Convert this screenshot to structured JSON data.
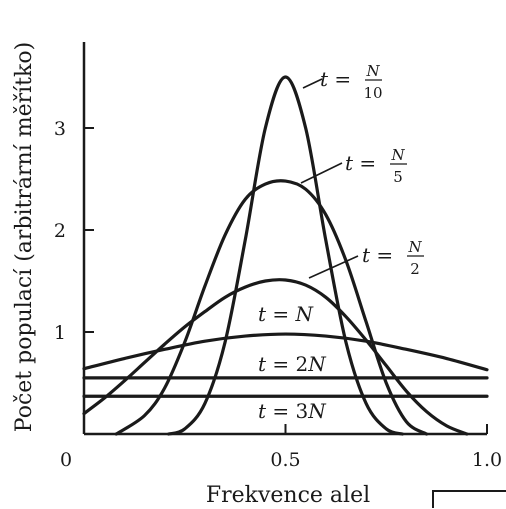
{
  "chart_data": {
    "type": "line",
    "title": "",
    "xlabel": "Frekvence alel",
    "ylabel": "Počet populací (arbitrární měřítko)",
    "xlim": [
      0,
      1.0
    ],
    "ylim": [
      0,
      3.6
    ],
    "x_ticks": [
      {
        "value": 0,
        "label": "0"
      },
      {
        "value": 0.5,
        "label": "0.5"
      },
      {
        "value": 1.0,
        "label": "1.0"
      }
    ],
    "y_ticks": [
      {
        "value": 1,
        "label": "1"
      },
      {
        "value": 2,
        "label": "2"
      },
      {
        "value": 3,
        "label": "3"
      }
    ],
    "grid": false,
    "legend": "none",
    "series": [
      {
        "name": "t = N/10",
        "points": [
          [
            0.21,
            0
          ],
          [
            0.25,
            0.05
          ],
          [
            0.3,
            0.3
          ],
          [
            0.35,
            0.9
          ],
          [
            0.4,
            1.9
          ],
          [
            0.45,
            3.0
          ],
          [
            0.5,
            3.5
          ],
          [
            0.55,
            3.0
          ],
          [
            0.6,
            1.9
          ],
          [
            0.65,
            0.9
          ],
          [
            0.7,
            0.3
          ],
          [
            0.75,
            0.05
          ],
          [
            0.79,
            0
          ]
        ]
      },
      {
        "name": "t = N/5",
        "points": [
          [
            0.08,
            0
          ],
          [
            0.15,
            0.18
          ],
          [
            0.2,
            0.45
          ],
          [
            0.25,
            0.9
          ],
          [
            0.3,
            1.45
          ],
          [
            0.35,
            1.95
          ],
          [
            0.4,
            2.3
          ],
          [
            0.45,
            2.45
          ],
          [
            0.5,
            2.48
          ],
          [
            0.55,
            2.4
          ],
          [
            0.6,
            2.15
          ],
          [
            0.65,
            1.7
          ],
          [
            0.7,
            1.1
          ],
          [
            0.75,
            0.5
          ],
          [
            0.8,
            0.12
          ],
          [
            0.85,
            0
          ]
        ]
      },
      {
        "name": "t = N/2",
        "points": [
          [
            0,
            0.2
          ],
          [
            0.05,
            0.35
          ],
          [
            0.1,
            0.52
          ],
          [
            0.15,
            0.7
          ],
          [
            0.2,
            0.88
          ],
          [
            0.25,
            1.05
          ],
          [
            0.3,
            1.2
          ],
          [
            0.35,
            1.34
          ],
          [
            0.4,
            1.44
          ],
          [
            0.45,
            1.5
          ],
          [
            0.5,
            1.51
          ],
          [
            0.55,
            1.46
          ],
          [
            0.6,
            1.34
          ],
          [
            0.65,
            1.15
          ],
          [
            0.7,
            0.92
          ],
          [
            0.75,
            0.67
          ],
          [
            0.8,
            0.42
          ],
          [
            0.85,
            0.22
          ],
          [
            0.9,
            0.08
          ],
          [
            0.95,
            0
          ]
        ]
      },
      {
        "name": "t = N",
        "points": [
          [
            0,
            0.64
          ],
          [
            0.1,
            0.74
          ],
          [
            0.2,
            0.83
          ],
          [
            0.3,
            0.91
          ],
          [
            0.4,
            0.96
          ],
          [
            0.5,
            0.98
          ],
          [
            0.6,
            0.96
          ],
          [
            0.7,
            0.91
          ],
          [
            0.8,
            0.83
          ],
          [
            0.9,
            0.74
          ],
          [
            1.0,
            0.63
          ]
        ]
      },
      {
        "name": "t = 2N",
        "points": [
          [
            0,
            0.55
          ],
          [
            1.0,
            0.55
          ]
        ]
      },
      {
        "name": "t = 3N",
        "points": [
          [
            0,
            0.37
          ],
          [
            1.0,
            0.37
          ]
        ]
      }
    ],
    "annotations": [
      {
        "series": "t = N/10",
        "prefix": "t = ",
        "numerator": "N",
        "denominator": "10",
        "fraction": true
      },
      {
        "series": "t = N/5",
        "prefix": "t = ",
        "numerator": "N",
        "denominator": "5",
        "fraction": true
      },
      {
        "series": "t = N/2",
        "prefix": "t = ",
        "numerator": "N",
        "denominator": "2",
        "fraction": true
      },
      {
        "series": "t = N",
        "text": "t = N",
        "fraction": false
      },
      {
        "series": "t = 2N",
        "text": "t = 2N",
        "fraction": false
      },
      {
        "series": "t = 3N",
        "text": "t = 3N",
        "fraction": false
      }
    ]
  }
}
